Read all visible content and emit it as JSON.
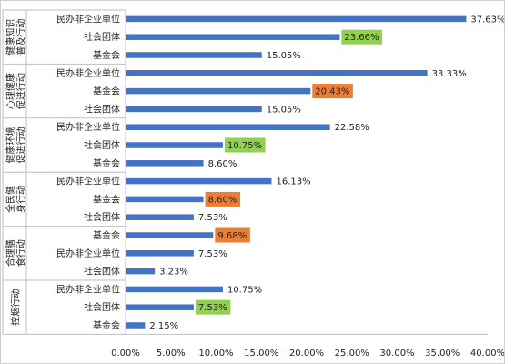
{
  "chart_data": {
    "type": "bar",
    "orientation": "horizontal",
    "grid": false,
    "xlim": [
      0,
      40
    ],
    "x_ticks": [
      "0.00%",
      "5.00%",
      "10.00%",
      "15.00%",
      "20.00%",
      "25.00%",
      "30.00%",
      "35.00%",
      "40.00%"
    ],
    "bar_color": "#4472C4",
    "groups": [
      {
        "name": "控烟行动",
        "bars": [
          {
            "label": "基金会",
            "value": 2.15,
            "value_label": "2.15%",
            "highlight": "none"
          },
          {
            "label": "社会团体",
            "value": 7.53,
            "value_label": "7.53%",
            "highlight": "#92D050"
          },
          {
            "label": "民办非企业单位",
            "value": 10.75,
            "value_label": "10.75%",
            "highlight": "none"
          }
        ]
      },
      {
        "name": "合理膳食行动",
        "bars": [
          {
            "label": "社会团体",
            "value": 3.23,
            "value_label": "3.23%",
            "highlight": "none"
          },
          {
            "label": "民办非企业单位",
            "value": 7.53,
            "value_label": "7.53%",
            "highlight": "none"
          },
          {
            "label": "基金会",
            "value": 9.68,
            "value_label": "9.68%",
            "highlight": "#ED7D31"
          }
        ]
      },
      {
        "name": "全民健身行动",
        "bars": [
          {
            "label": "社会团体",
            "value": 7.53,
            "value_label": "7.53%",
            "highlight": "none"
          },
          {
            "label": "基金会",
            "value": 8.6,
            "value_label": "8.60%",
            "highlight": "#ED7D31"
          },
          {
            "label": "民办非企业单位",
            "value": 16.13,
            "value_label": "16.13%",
            "highlight": "none"
          }
        ]
      },
      {
        "name": "健康环境促进行动",
        "bars": [
          {
            "label": "基金会",
            "value": 8.6,
            "value_label": "8.60%",
            "highlight": "none"
          },
          {
            "label": "社会团体",
            "value": 10.75,
            "value_label": "10.75%",
            "highlight": "#92D050"
          },
          {
            "label": "民办非企业单位",
            "value": 22.58,
            "value_label": "22.58%",
            "highlight": "none"
          }
        ]
      },
      {
        "name": "心理健康促进行动",
        "bars": [
          {
            "label": "社会团体",
            "value": 15.05,
            "value_label": "15.05%",
            "highlight": "none"
          },
          {
            "label": "基金会",
            "value": 20.43,
            "value_label": "20.43%",
            "highlight": "#ED7D31"
          },
          {
            "label": "民办非企业单位",
            "value": 33.33,
            "value_label": "33.33%",
            "highlight": "none"
          }
        ]
      },
      {
        "name": "健康知识普及行动",
        "bars": [
          {
            "label": "基金会",
            "value": 15.05,
            "value_label": "15.05%",
            "highlight": "none"
          },
          {
            "label": "社会团体",
            "value": 23.66,
            "value_label": "23.66%",
            "highlight": "#92D050"
          },
          {
            "label": "民办非企业单位",
            "value": 37.63,
            "value_label": "37.63%",
            "highlight": "none"
          }
        ]
      }
    ]
  }
}
